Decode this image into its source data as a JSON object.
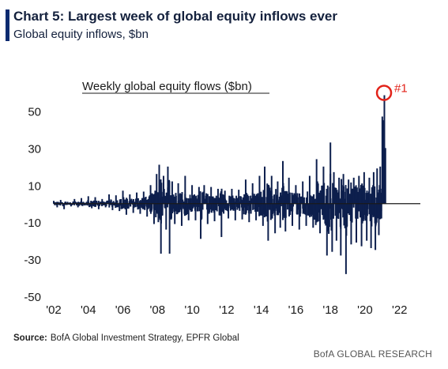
{
  "header": {
    "title": "Chart 5: Largest week of global equity inflows ever",
    "subtitle": "Global equity inflows, $bn"
  },
  "footer": {
    "source_label": "Source:",
    "source_text": "BofA Global Investment Strategy, EPFR Global",
    "brand": "BofA GLOBAL RESEARCH"
  },
  "colors": {
    "bars": "#0d1f4d",
    "zero_line": "#1a1a1a",
    "highlight": "#e2231a",
    "accent": "#0b2a6f"
  },
  "chart_data": {
    "type": "bar",
    "title": "Weekly global equity flows ($bn)",
    "xlabel": "",
    "ylabel": "",
    "ylim": [
      -50,
      60
    ],
    "xlim": [
      2002,
      2023.2
    ],
    "y_ticks": [
      50,
      30,
      10,
      -10,
      -30,
      -50
    ],
    "y_tick_labels": [
      "50",
      "30",
      "10",
      "-10",
      "-30",
      "-50"
    ],
    "x_ticks": [
      2002,
      2004,
      2006,
      2008,
      2010,
      2012,
      2014,
      2016,
      2018,
      2020,
      2022
    ],
    "x_tick_labels": [
      "'02",
      "'04",
      "'06",
      "'08",
      "'10",
      "'12",
      "'14",
      "'16",
      "'18",
      "'20",
      "'22"
    ],
    "grid": false,
    "annotation": {
      "text": "#1",
      "x": 2021.1,
      "y": 58.5
    },
    "series": [
      {
        "values_description": "",
        "points": [
          {
            "x": 2002.0,
            "y": 1.5
          },
          {
            "x": 2002.2,
            "y": -2.0
          },
          {
            "x": 2002.4,
            "y": 2.0
          },
          {
            "x": 2002.6,
            "y": -3.0
          },
          {
            "x": 2002.8,
            "y": 1.0
          },
          {
            "x": 2003.0,
            "y": -1.5
          },
          {
            "x": 2003.2,
            "y": 2.5
          },
          {
            "x": 2003.4,
            "y": -2.0
          },
          {
            "x": 2003.6,
            "y": 3.0
          },
          {
            "x": 2003.8,
            "y": -1.0
          },
          {
            "x": 2004.0,
            "y": 4.0
          },
          {
            "x": 2004.2,
            "y": -2.5
          },
          {
            "x": 2004.4,
            "y": 3.5
          },
          {
            "x": 2004.6,
            "y": -3.0
          },
          {
            "x": 2004.8,
            "y": 2.5
          },
          {
            "x": 2005.0,
            "y": -2.0
          },
          {
            "x": 2005.2,
            "y": 5.0
          },
          {
            "x": 2005.4,
            "y": -3.5
          },
          {
            "x": 2005.6,
            "y": 4.5
          },
          {
            "x": 2005.8,
            "y": -4.0
          },
          {
            "x": 2006.0,
            "y": 7.0
          },
          {
            "x": 2006.2,
            "y": -6.0
          },
          {
            "x": 2006.4,
            "y": 5.0
          },
          {
            "x": 2006.6,
            "y": -5.0
          },
          {
            "x": 2006.8,
            "y": 6.0
          },
          {
            "x": 2007.0,
            "y": -5.5
          },
          {
            "x": 2007.2,
            "y": 6.5
          },
          {
            "x": 2007.4,
            "y": -7.0
          },
          {
            "x": 2007.6,
            "y": 10.0
          },
          {
            "x": 2007.8,
            "y": -11.0
          },
          {
            "x": 2007.95,
            "y": 16.0
          },
          {
            "x": 2008.05,
            "y": -10.0
          },
          {
            "x": 2008.1,
            "y": 21.0
          },
          {
            "x": 2008.2,
            "y": -27.0
          },
          {
            "x": 2008.35,
            "y": 15.0
          },
          {
            "x": 2008.5,
            "y": -14.0
          },
          {
            "x": 2008.6,
            "y": 20.0
          },
          {
            "x": 2008.7,
            "y": -27.0
          },
          {
            "x": 2008.85,
            "y": 12.0
          },
          {
            "x": 2009.0,
            "y": -11.0
          },
          {
            "x": 2009.2,
            "y": 11.0
          },
          {
            "x": 2009.4,
            "y": -12.0
          },
          {
            "x": 2009.6,
            "y": 15.0
          },
          {
            "x": 2009.8,
            "y": -9.0
          },
          {
            "x": 2010.0,
            "y": 10.0
          },
          {
            "x": 2010.2,
            "y": -9.0
          },
          {
            "x": 2010.4,
            "y": 9.0
          },
          {
            "x": 2010.5,
            "y": -19.0
          },
          {
            "x": 2010.7,
            "y": 10.0
          },
          {
            "x": 2010.9,
            "y": -11.0
          },
          {
            "x": 2011.1,
            "y": 9.0
          },
          {
            "x": 2011.3,
            "y": -9.5
          },
          {
            "x": 2011.5,
            "y": 8.0
          },
          {
            "x": 2011.7,
            "y": -18.0
          },
          {
            "x": 2011.9,
            "y": 7.0
          },
          {
            "x": 2012.1,
            "y": -8.0
          },
          {
            "x": 2012.3,
            "y": 8.0
          },
          {
            "x": 2012.5,
            "y": -9.0
          },
          {
            "x": 2012.7,
            "y": 7.5
          },
          {
            "x": 2012.9,
            "y": -8.5
          },
          {
            "x": 2013.1,
            "y": 13.0
          },
          {
            "x": 2013.3,
            "y": -10.0
          },
          {
            "x": 2013.5,
            "y": 11.0
          },
          {
            "x": 2013.7,
            "y": -9.0
          },
          {
            "x": 2013.9,
            "y": 15.0
          },
          {
            "x": 2014.1,
            "y": -12.0
          },
          {
            "x": 2014.2,
            "y": 20.0
          },
          {
            "x": 2014.4,
            "y": -20.0
          },
          {
            "x": 2014.6,
            "y": 15.0
          },
          {
            "x": 2014.8,
            "y": -16.0
          },
          {
            "x": 2014.95,
            "y": 12.0
          },
          {
            "x": 2015.1,
            "y": -13.0
          },
          {
            "x": 2015.25,
            "y": 23.0
          },
          {
            "x": 2015.4,
            "y": -15.0
          },
          {
            "x": 2015.6,
            "y": 14.0
          },
          {
            "x": 2015.8,
            "y": -12.0
          },
          {
            "x": 2016.0,
            "y": 10.0
          },
          {
            "x": 2016.2,
            "y": -14.0
          },
          {
            "x": 2016.4,
            "y": 12.0
          },
          {
            "x": 2016.6,
            "y": -12.0
          },
          {
            "x": 2016.8,
            "y": 15.0
          },
          {
            "x": 2017.0,
            "y": -13.0
          },
          {
            "x": 2017.2,
            "y": 24.0
          },
          {
            "x": 2017.4,
            "y": -16.0
          },
          {
            "x": 2017.6,
            "y": 20.0
          },
          {
            "x": 2017.8,
            "y": -28.0
          },
          {
            "x": 2018.0,
            "y": 33.0
          },
          {
            "x": 2018.1,
            "y": -26.0
          },
          {
            "x": 2018.2,
            "y": 17.0
          },
          {
            "x": 2018.35,
            "y": -20.0
          },
          {
            "x": 2018.5,
            "y": 14.0
          },
          {
            "x": 2018.6,
            "y": -28.0
          },
          {
            "x": 2018.75,
            "y": 16.0
          },
          {
            "x": 2018.9,
            "y": -38.0
          },
          {
            "x": 2019.05,
            "y": 13.0
          },
          {
            "x": 2019.2,
            "y": -22.0
          },
          {
            "x": 2019.35,
            "y": 14.0
          },
          {
            "x": 2019.5,
            "y": -21.0
          },
          {
            "x": 2019.65,
            "y": 15.0
          },
          {
            "x": 2019.8,
            "y": -23.0
          },
          {
            "x": 2019.95,
            "y": 17.0
          },
          {
            "x": 2020.1,
            "y": -20.0
          },
          {
            "x": 2020.25,
            "y": 14.0
          },
          {
            "x": 2020.35,
            "y": -24.0
          },
          {
            "x": 2020.5,
            "y": 17.0
          },
          {
            "x": 2020.6,
            "y": -25.0
          },
          {
            "x": 2020.7,
            "y": 19.0
          },
          {
            "x": 2020.8,
            "y": -17.0
          },
          {
            "x": 2020.88,
            "y": 20.0
          },
          {
            "x": 2020.95,
            "y": -8.0
          },
          {
            "x": 2021.0,
            "y": 47.0
          },
          {
            "x": 2021.05,
            "y": 45.0
          },
          {
            "x": 2021.12,
            "y": 58.5
          },
          {
            "x": 2021.18,
            "y": 30.0
          }
        ]
      }
    ]
  }
}
